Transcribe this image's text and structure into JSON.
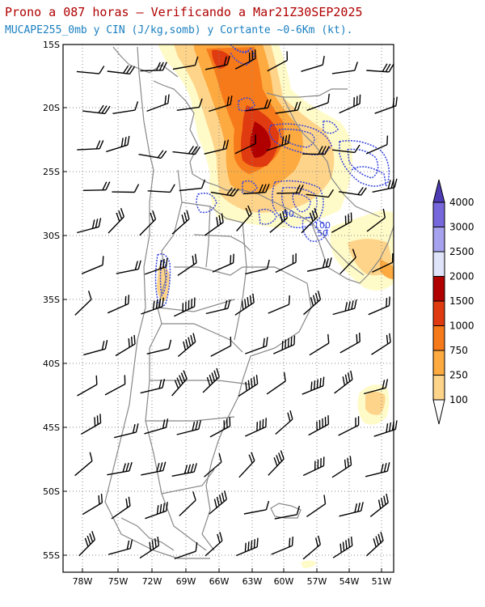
{
  "title_line1": "Prono a 087 horas – Verificando a Mar21Z30SEP2025",
  "title_line2": "MUCAPE255_0mb y CIN (J/kg,somb) y Cortante ~0-6Km (kt).",
  "colors": {
    "title1": "#b00000",
    "title2": "#1a7fc0",
    "cin_contour": "#3344dd",
    "border": "#888888",
    "barb": "#000000"
  },
  "map": {
    "lat_labels": [
      "15S",
      "20S",
      "25S",
      "30S",
      "35S",
      "40S",
      "45S",
      "50S",
      "55S"
    ],
    "lon_labels": [
      "78W",
      "75W",
      "72W",
      "69W",
      "66W",
      "63W",
      "60W",
      "57W",
      "54W",
      "51W"
    ],
    "contour_labels": [
      "50",
      "100",
      "50"
    ]
  },
  "colorbar": {
    "levels": [
      "100",
      "250",
      "750",
      "1000",
      "1500",
      "2000",
      "2500",
      "3000",
      "4000"
    ],
    "colors": [
      "#fffbc8",
      "#fed48a",
      "#fdaa40",
      "#f77a1a",
      "#e03a10",
      "#b00000",
      "#e0e4fa",
      "#a6a2ee",
      "#7668dc",
      "#4e3cb6"
    ]
  },
  "icons": [
    "wind-barb-icon"
  ]
}
